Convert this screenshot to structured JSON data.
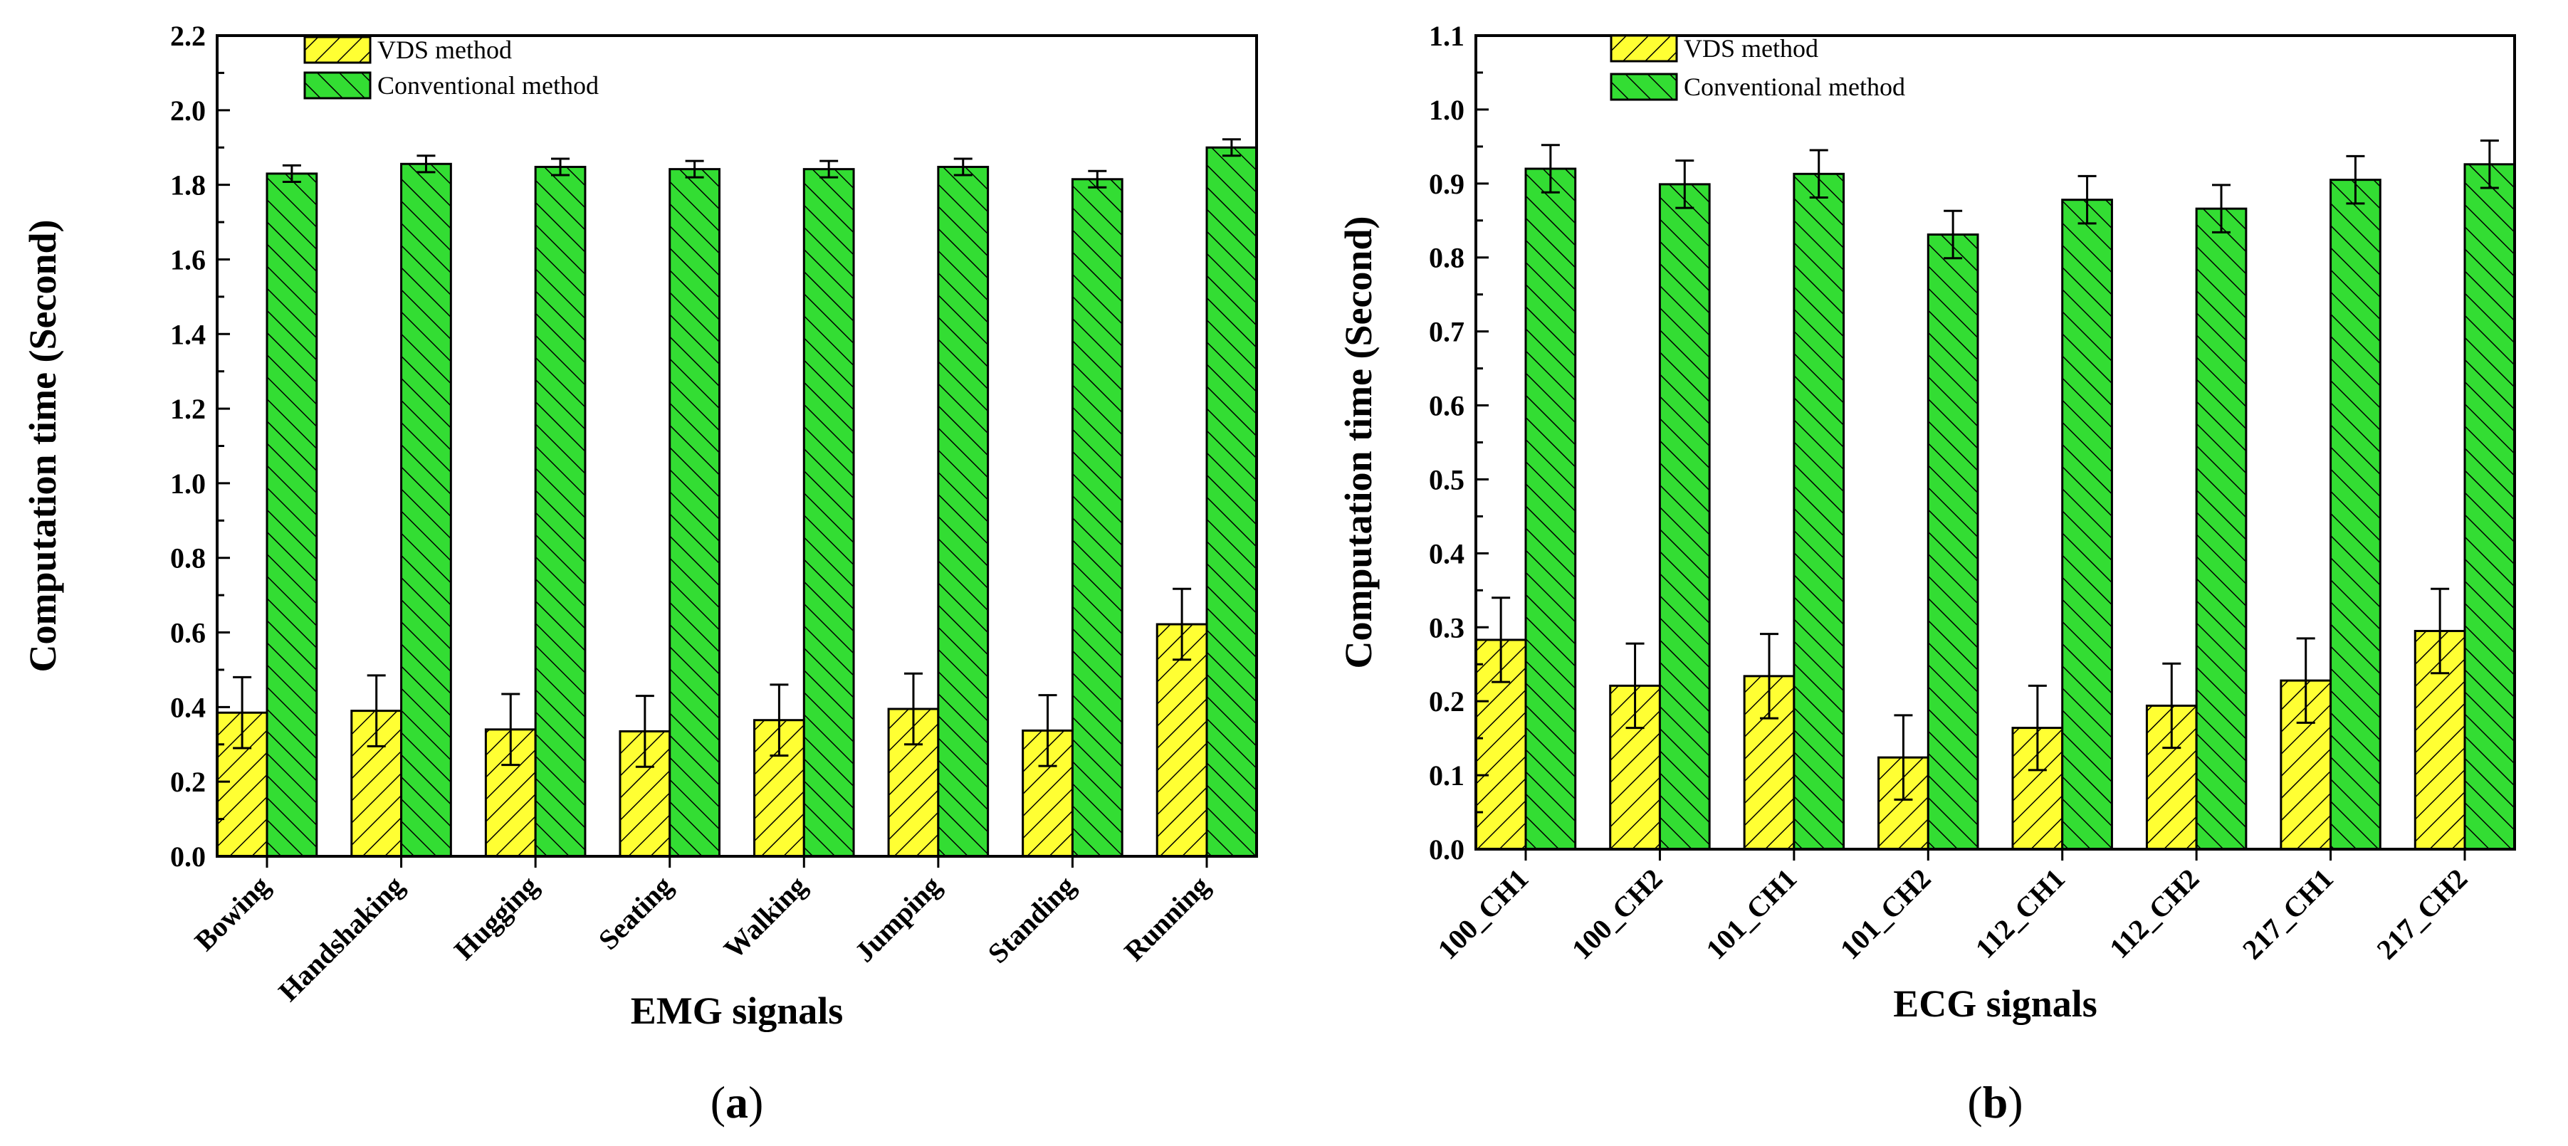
{
  "colors": {
    "vds_fill": "#ffff33",
    "conventional_fill": "#33dd33",
    "hatch": "#000000",
    "axis": "#000000"
  },
  "chart_data": [
    {
      "type": "bar",
      "panel": "a",
      "panel_label": {
        "open": "(",
        "letter": "a",
        "close": ")"
      },
      "xlabel": "EMG signals",
      "ylabel": "Computation time (Second)",
      "ylim": [
        0,
        2.2
      ],
      "yticks": [
        0.0,
        0.2,
        0.4,
        0.6,
        0.8,
        1.0,
        1.2,
        1.4,
        1.6,
        1.8,
        2.0,
        2.2
      ],
      "ytick_labels": [
        "0.0",
        "0.2",
        "0.4",
        "0.6",
        "0.8",
        "1.0",
        "1.2",
        "1.4",
        "1.6",
        "1.8",
        "2.0",
        "2.2"
      ],
      "categories": [
        "Bowing",
        "Handshaking",
        "Hugging",
        "Seating",
        "Walking",
        "Jumping",
        "Standing",
        "Running"
      ],
      "legend": {
        "position": "top-left",
        "entries": [
          "VDS method",
          "Conventional method"
        ]
      },
      "series": [
        {
          "name": "VDS method",
          "values": [
            0.385,
            0.39,
            0.34,
            0.335,
            0.365,
            0.395,
            0.337,
            0.622
          ],
          "errors": [
            0.095,
            0.095,
            0.095,
            0.095,
            0.095,
            0.095,
            0.095,
            0.095
          ]
        },
        {
          "name": "Conventional method",
          "values": [
            1.83,
            1.856,
            1.848,
            1.842,
            1.842,
            1.848,
            1.815,
            1.9
          ],
          "errors": [
            0.022,
            0.022,
            0.022,
            0.022,
            0.022,
            0.022,
            0.022,
            0.022
          ]
        }
      ]
    },
    {
      "type": "bar",
      "panel": "b",
      "panel_label": {
        "open": "(",
        "letter": "b",
        "close": ")"
      },
      "xlabel": "ECG signals",
      "ylabel": "Computation time (Second)",
      "ylim": [
        0,
        1.1
      ],
      "yticks": [
        0.0,
        0.1,
        0.2,
        0.3,
        0.4,
        0.5,
        0.6,
        0.7,
        0.8,
        0.9,
        1.0,
        1.1
      ],
      "ytick_labels": [
        "0.0",
        "0.1",
        "0.2",
        "0.3",
        "0.4",
        "0.5",
        "0.6",
        "0.7",
        "0.8",
        "0.9",
        "1.0",
        "1.1"
      ],
      "categories": [
        "100_CH1",
        "100_CH2",
        "101_CH1",
        "101_CH2",
        "112_CH1",
        "112_CH2",
        "217_CH1",
        "217_CH2"
      ],
      "legend": {
        "position": "top-left",
        "entries": [
          "VDS method",
          "Conventional method"
        ]
      },
      "series": [
        {
          "name": "VDS method",
          "values": [
            0.283,
            0.221,
            0.234,
            0.124,
            0.164,
            0.194,
            0.228,
            0.295
          ],
          "errors": [
            0.057,
            0.057,
            0.057,
            0.057,
            0.057,
            0.057,
            0.057,
            0.057
          ]
        },
        {
          "name": "Conventional method",
          "values": [
            0.92,
            0.899,
            0.913,
            0.831,
            0.878,
            0.866,
            0.905,
            0.926
          ],
          "errors": [
            0.032,
            0.032,
            0.032,
            0.032,
            0.032,
            0.032,
            0.032,
            0.032
          ]
        }
      ]
    }
  ]
}
